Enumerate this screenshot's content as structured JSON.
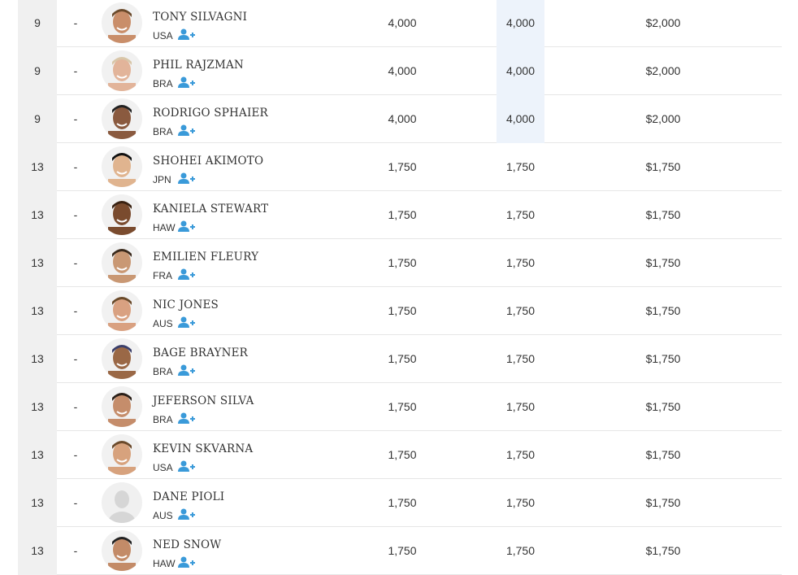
{
  "rankings": {
    "rows": [
      {
        "rank": "9",
        "change": "-",
        "name": "TONY SILVAGNI",
        "country": "USA",
        "points": "4,000",
        "counted_points": "4,000",
        "prize": "$2,000"
      },
      {
        "rank": "9",
        "change": "-",
        "name": "PHIL RAJZMAN",
        "country": "BRA",
        "points": "4,000",
        "counted_points": "4,000",
        "prize": "$2,000"
      },
      {
        "rank": "9",
        "change": "-",
        "name": "RODRIGO SPHAIER",
        "country": "BRA",
        "points": "4,000",
        "counted_points": "4,000",
        "prize": "$2,000"
      },
      {
        "rank": "13",
        "change": "-",
        "name": "SHOHEI AKIMOTO",
        "country": "JPN",
        "points": "1,750",
        "counted_points": "1,750",
        "prize": "$1,750"
      },
      {
        "rank": "13",
        "change": "-",
        "name": "KANIELA STEWART",
        "country": "HAW",
        "points": "1,750",
        "counted_points": "1,750",
        "prize": "$1,750"
      },
      {
        "rank": "13",
        "change": "-",
        "name": "EMILIEN FLEURY",
        "country": "FRA",
        "points": "1,750",
        "counted_points": "1,750",
        "prize": "$1,750"
      },
      {
        "rank": "13",
        "change": "-",
        "name": "NIC JONES",
        "country": "AUS",
        "points": "1,750",
        "counted_points": "1,750",
        "prize": "$1,750"
      },
      {
        "rank": "13",
        "change": "-",
        "name": "BAGE BRAYNER",
        "country": "BRA",
        "points": "1,750",
        "counted_points": "1,750",
        "prize": "$1,750"
      },
      {
        "rank": "13",
        "change": "-",
        "name": "JEFERSON SILVA",
        "country": "BRA",
        "points": "1,750",
        "counted_points": "1,750",
        "prize": "$1,750"
      },
      {
        "rank": "13",
        "change": "-",
        "name": "KEVIN SKVARNA",
        "country": "USA",
        "points": "1,750",
        "counted_points": "1,750",
        "prize": "$1,750"
      },
      {
        "rank": "13",
        "change": "-",
        "name": "DANE PIOLI",
        "country": "AUS",
        "points": "1,750",
        "counted_points": "1,750",
        "prize": "$1,750"
      },
      {
        "rank": "13",
        "change": "-",
        "name": "NED SNOW",
        "country": "HAW",
        "points": "1,750",
        "counted_points": "1,750",
        "prize": "$1,750"
      }
    ]
  }
}
